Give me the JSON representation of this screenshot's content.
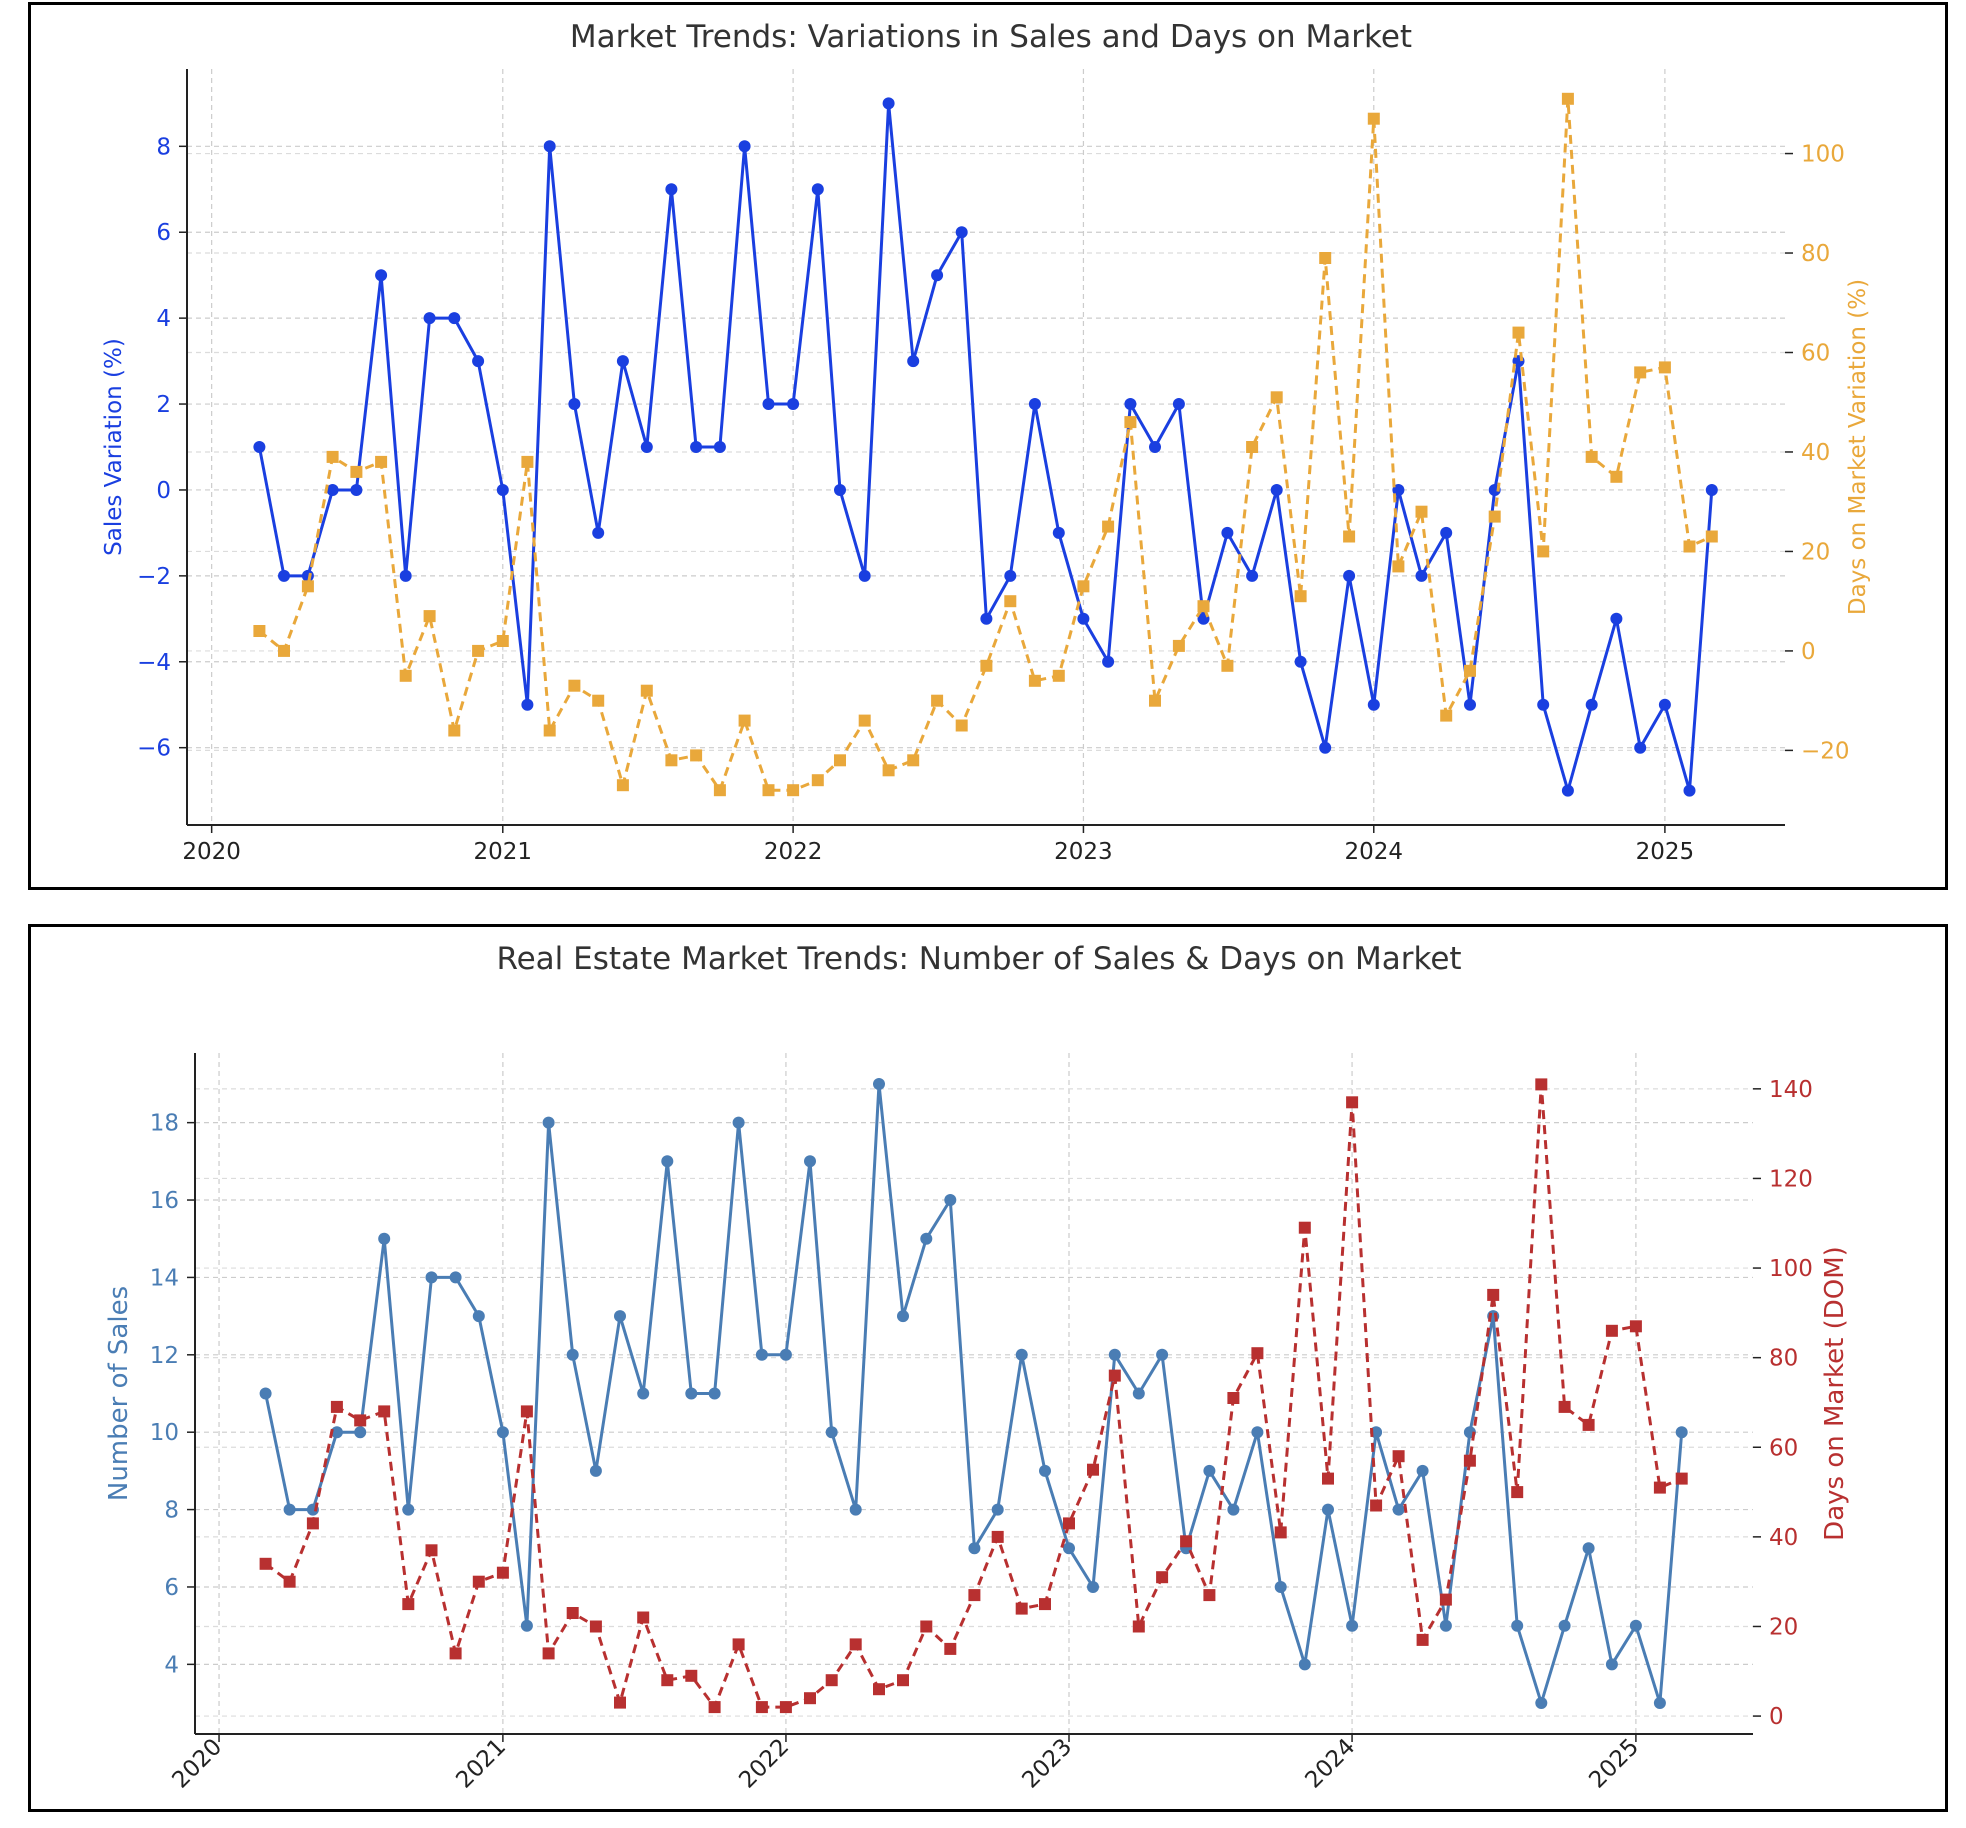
{
  "chart_data": [
    {
      "type": "line",
      "title": "Market Trends: Variations in Sales and Days on Market",
      "xlabel": "",
      "x_ticks": [
        "2020",
        "2021",
        "2022",
        "2023",
        "2024",
        "2025"
      ],
      "x_range": [
        "2019-12-01",
        "2025-06-01"
      ],
      "y_left": {
        "label": "Sales Variation (%)",
        "range": [
          -7.8,
          9.8
        ],
        "ticks": [
          -6,
          -4,
          -2,
          0,
          2,
          4,
          6,
          8
        ],
        "color": "#1a3fe0"
      },
      "y_right": {
        "label": "Days on Market Variation (%)",
        "range": [
          -35,
          117
        ],
        "ticks": [
          -20,
          0,
          20,
          40,
          60,
          80,
          100
        ],
        "color": "#e9a83b"
      },
      "grid": true,
      "dates": [
        "2020-03",
        "2020-04",
        "2020-05",
        "2020-06",
        "2020-07",
        "2020-08",
        "2020-09",
        "2020-10",
        "2020-11",
        "2020-12",
        "2021-01",
        "2021-02",
        "2021-03",
        "2021-04",
        "2021-05",
        "2021-06",
        "2021-07",
        "2021-08",
        "2021-09",
        "2021-10",
        "2021-11",
        "2021-12",
        "2022-01",
        "2022-02",
        "2022-03",
        "2022-04",
        "2022-05",
        "2022-06",
        "2022-07",
        "2022-08",
        "2022-09",
        "2022-10",
        "2022-11",
        "2022-12",
        "2023-01",
        "2023-02",
        "2023-03",
        "2023-04",
        "2023-05",
        "2023-06",
        "2023-07",
        "2023-08",
        "2023-09",
        "2023-10",
        "2023-11",
        "2023-12",
        "2024-01",
        "2024-02",
        "2024-03",
        "2024-04",
        "2024-05",
        "2024-06",
        "2024-07",
        "2024-08",
        "2024-09",
        "2024-10",
        "2024-11",
        "2024-12",
        "2025-01",
        "2025-02",
        "2025-03"
      ],
      "series": [
        {
          "axis": "left",
          "style": "solid-circle",
          "color": "#1a3fe0",
          "values": [
            1,
            -2,
            -2,
            0,
            0,
            5,
            -2,
            4,
            4,
            3,
            0,
            -5,
            8,
            2,
            -1,
            3,
            1,
            7,
            1,
            1,
            8,
            2,
            2,
            7,
            0,
            -2,
            9,
            3,
            5,
            6,
            -3,
            -2,
            2,
            -1,
            -3,
            -4,
            2,
            1,
            2,
            -3,
            -1,
            -2,
            0,
            -4,
            -6,
            -2,
            -5,
            0,
            -2,
            -1,
            -5,
            0,
            3,
            -5,
            -7,
            -5,
            -3,
            -6,
            -5,
            -7,
            0
          ]
        },
        {
          "axis": "right",
          "style": "dashed-square",
          "color": "#e9a83b",
          "values": [
            4,
            0,
            13,
            39,
            36,
            38,
            -5,
            7,
            -16,
            0,
            2,
            38,
            -16,
            -7,
            -10,
            -27,
            -8,
            -22,
            -21,
            -28,
            -14,
            -28,
            -28,
            -26,
            -22,
            -14,
            -24,
            -22,
            -10,
            -15,
            -3,
            10,
            -6,
            -5,
            13,
            25,
            46,
            -10,
            1,
            9,
            -3,
            41,
            51,
            11,
            79,
            23,
            107,
            17,
            28,
            -13,
            -4,
            27,
            64,
            20,
            111,
            39,
            35,
            56,
            57,
            21,
            23
          ]
        }
      ]
    },
    {
      "type": "line",
      "title": "Real Estate Market Trends: Number of Sales & Days on Market",
      "xlabel": "",
      "x_ticks": [
        "2020",
        "2021",
        "2022",
        "2023",
        "2024",
        "2025"
      ],
      "x_range": [
        "2019-12-01",
        "2025-06-01"
      ],
      "y_left": {
        "label": "Number of Sales",
        "range": [
          2.2,
          19.8
        ],
        "ticks": [
          4,
          6,
          8,
          10,
          12,
          14,
          16,
          18
        ],
        "color": "#4a7db4"
      },
      "y_right": {
        "label": "Days on Market (DOM)",
        "range": [
          -4,
          148
        ],
        "ticks": [
          0,
          20,
          40,
          60,
          80,
          100,
          120,
          140
        ],
        "color": "#b83030"
      },
      "grid": true,
      "dates": [
        "2020-03",
        "2020-04",
        "2020-05",
        "2020-06",
        "2020-07",
        "2020-08",
        "2020-09",
        "2020-10",
        "2020-11",
        "2020-12",
        "2021-01",
        "2021-02",
        "2021-03",
        "2021-04",
        "2021-05",
        "2021-06",
        "2021-07",
        "2021-08",
        "2021-09",
        "2021-10",
        "2021-11",
        "2021-12",
        "2022-01",
        "2022-02",
        "2022-03",
        "2022-04",
        "2022-05",
        "2022-06",
        "2022-07",
        "2022-08",
        "2022-09",
        "2022-10",
        "2022-11",
        "2022-12",
        "2023-01",
        "2023-02",
        "2023-03",
        "2023-04",
        "2023-05",
        "2023-06",
        "2023-07",
        "2023-08",
        "2023-09",
        "2023-10",
        "2023-11",
        "2023-12",
        "2024-01",
        "2024-02",
        "2024-03",
        "2024-04",
        "2024-05",
        "2024-06",
        "2024-07",
        "2024-08",
        "2024-09",
        "2024-10",
        "2024-11",
        "2024-12",
        "2025-01",
        "2025-02",
        "2025-03"
      ],
      "series": [
        {
          "axis": "left",
          "style": "solid-circle",
          "color": "#4a7db4",
          "values": [
            11,
            8,
            8,
            10,
            10,
            15,
            8,
            14,
            14,
            13,
            10,
            5,
            18,
            12,
            9,
            13,
            11,
            17,
            11,
            11,
            18,
            12,
            12,
            17,
            10,
            8,
            19,
            13,
            15,
            16,
            7,
            8,
            12,
            9,
            7,
            6,
            12,
            11,
            12,
            7,
            9,
            8,
            10,
            6,
            4,
            8,
            5,
            10,
            8,
            9,
            5,
            10,
            13,
            5,
            3,
            5,
            7,
            4,
            5,
            3,
            10
          ]
        },
        {
          "axis": "right",
          "style": "dashed-square",
          "color": "#b83030",
          "values": [
            34,
            30,
            43,
            69,
            66,
            68,
            25,
            37,
            14,
            30,
            32,
            68,
            14,
            23,
            20,
            3,
            22,
            8,
            9,
            2,
            16,
            2,
            2,
            4,
            8,
            16,
            6,
            8,
            20,
            15,
            27,
            40,
            24,
            25,
            43,
            55,
            76,
            20,
            31,
            39,
            27,
            71,
            81,
            41,
            109,
            53,
            137,
            47,
            58,
            17,
            26,
            57,
            94,
            50,
            141,
            69,
            65,
            86,
            87,
            51,
            53
          ]
        }
      ]
    }
  ]
}
